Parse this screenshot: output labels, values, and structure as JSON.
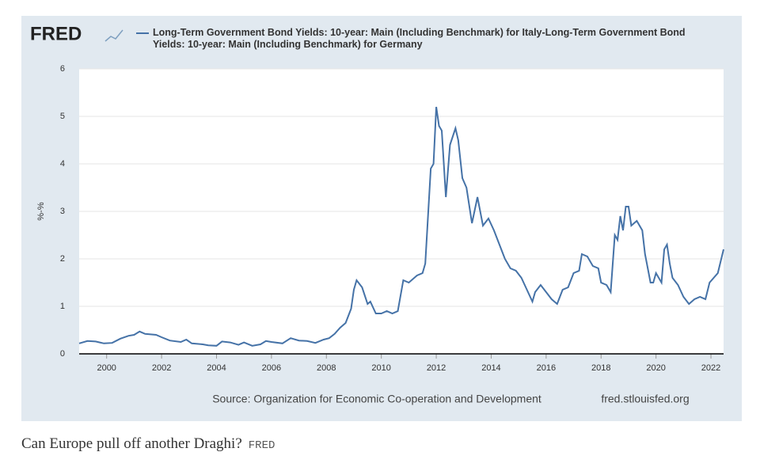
{
  "logo": "FRED",
  "chart_data": {
    "type": "line",
    "ylabel": "%-%",
    "source": "Source: Organization for Economic Co-operation and Development",
    "site": "fred.stlouisfed.org",
    "series": [
      {
        "name": "Long-Term Government Bond Yields: 10-year: Main (Including Benchmark) for Italy-Long-Term Government Bond Yields: 10-year: Main (Including Benchmark) for Germany",
        "color": "#4572a7",
        "x": [
          1999.0,
          1999.3,
          1999.6,
          1999.9,
          2000.2,
          2000.5,
          2000.8,
          2001.0,
          2001.2,
          2001.4,
          2001.8,
          2002.0,
          2002.3,
          2002.7,
          2002.9,
          2003.1,
          2003.5,
          2003.7,
          2004.0,
          2004.2,
          2004.5,
          2004.8,
          2005.0,
          2005.3,
          2005.6,
          2005.8,
          2006.0,
          2006.4,
          2006.7,
          2007.0,
          2007.3,
          2007.6,
          2007.9,
          2008.1,
          2008.3,
          2008.5,
          2008.7,
          2008.9,
          2009.0,
          2009.1,
          2009.3,
          2009.5,
          2009.6,
          2009.8,
          2010.0,
          2010.2,
          2010.4,
          2010.6,
          2010.8,
          2011.0,
          2011.3,
          2011.5,
          2011.6,
          2011.7,
          2011.8,
          2011.9,
          2012.0,
          2012.1,
          2012.2,
          2012.35,
          2012.5,
          2012.7,
          2012.8,
          2012.95,
          2013.1,
          2013.3,
          2013.5,
          2013.7,
          2013.9,
          2014.1,
          2014.3,
          2014.5,
          2014.7,
          2014.9,
          2015.1,
          2015.3,
          2015.5,
          2015.6,
          2015.8,
          2016.0,
          2016.2,
          2016.4,
          2016.6,
          2016.8,
          2017.0,
          2017.2,
          2017.3,
          2017.5,
          2017.7,
          2017.9,
          2018.0,
          2018.2,
          2018.35,
          2018.5,
          2018.6,
          2018.7,
          2018.8,
          2018.9,
          2019.0,
          2019.1,
          2019.3,
          2019.5,
          2019.6,
          2019.8,
          2019.9,
          2020.0,
          2020.2,
          2020.3,
          2020.4,
          2020.5,
          2020.6,
          2020.8,
          2021.0,
          2021.2,
          2021.4,
          2021.6,
          2021.8,
          2021.95,
          2022.1,
          2022.25,
          2022.46
        ],
        "values": [
          0.22,
          0.27,
          0.26,
          0.22,
          0.23,
          0.32,
          0.38,
          0.4,
          0.47,
          0.42,
          0.4,
          0.35,
          0.28,
          0.25,
          0.3,
          0.22,
          0.2,
          0.18,
          0.17,
          0.26,
          0.24,
          0.19,
          0.24,
          0.17,
          0.2,
          0.27,
          0.25,
          0.22,
          0.33,
          0.28,
          0.27,
          0.23,
          0.3,
          0.33,
          0.42,
          0.55,
          0.65,
          0.95,
          1.35,
          1.55,
          1.4,
          1.05,
          1.1,
          0.85,
          0.85,
          0.9,
          0.85,
          0.9,
          1.55,
          1.5,
          1.65,
          1.7,
          1.9,
          2.9,
          3.9,
          4.0,
          5.2,
          4.8,
          4.7,
          3.3,
          4.4,
          4.75,
          4.5,
          3.7,
          3.5,
          2.75,
          3.3,
          2.7,
          2.85,
          2.6,
          2.3,
          2.0,
          1.8,
          1.75,
          1.6,
          1.35,
          1.1,
          1.3,
          1.45,
          1.3,
          1.15,
          1.05,
          1.35,
          1.4,
          1.7,
          1.75,
          2.1,
          2.05,
          1.85,
          1.8,
          1.5,
          1.45,
          1.3,
          2.5,
          2.4,
          2.9,
          2.6,
          3.1,
          3.1,
          2.7,
          2.8,
          2.6,
          2.1,
          1.5,
          1.5,
          1.7,
          1.5,
          2.2,
          2.3,
          1.9,
          1.6,
          1.45,
          1.2,
          1.05,
          1.15,
          1.2,
          1.15,
          1.5,
          1.6,
          1.7,
          2.2
        ]
      }
    ],
    "xlim": [
      1999.0,
      2022.46
    ],
    "xticks": [
      2000,
      2002,
      2004,
      2006,
      2008,
      2010,
      2012,
      2014,
      2016,
      2018,
      2020,
      2022
    ],
    "ylim": [
      0,
      6
    ],
    "yticks": [
      0,
      1,
      2,
      3,
      4,
      5,
      6
    ],
    "grid": true
  },
  "caption": {
    "text": "Can Europe pull off another Draghi?",
    "credit": "FRED"
  }
}
